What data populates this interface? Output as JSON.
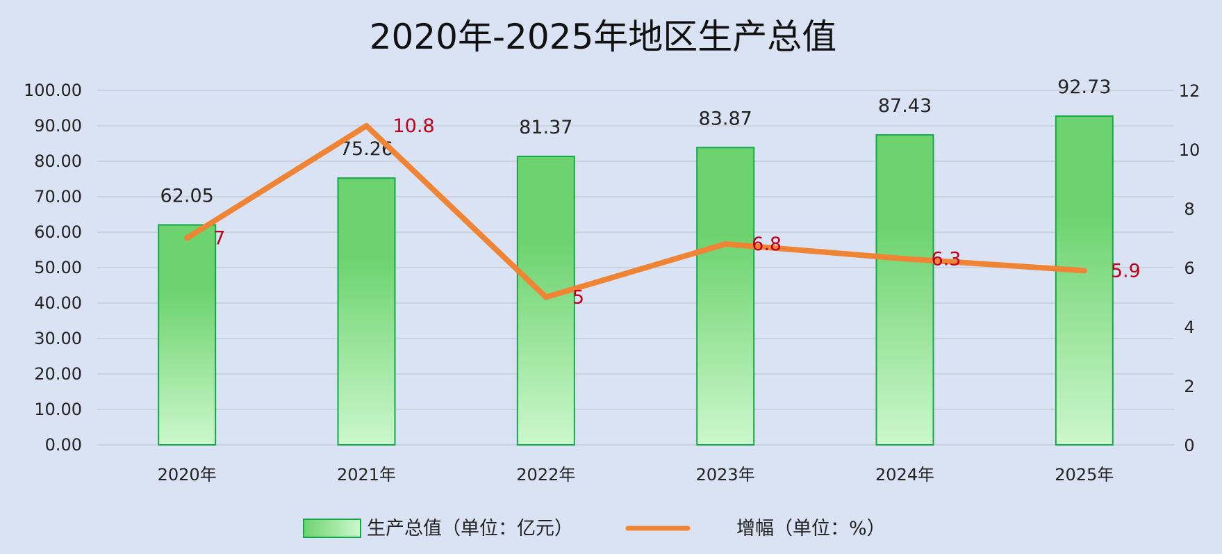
{
  "chart_data": {
    "type": "bar",
    "title": "2020年-2025年地区生产总值",
    "categories": [
      "2020年",
      "2021年",
      "2022年",
      "2023年",
      "2024年",
      "2025年"
    ],
    "series": [
      {
        "name": "生产总值（单位：亿元）",
        "type": "bar",
        "axis": "left",
        "values": [
          62.05,
          75.26,
          81.37,
          83.87,
          87.43,
          92.73
        ],
        "labels": [
          "62.05",
          "75.26",
          "81.37",
          "83.87",
          "87.43",
          "92.73"
        ],
        "color": "#6dd36f"
      },
      {
        "name": "增幅（单位：%）",
        "type": "line",
        "axis": "right",
        "values": [
          7,
          10.8,
          5,
          6.8,
          6.3,
          5.9
        ],
        "labels": [
          "7",
          "10.8",
          "5",
          "6.8",
          "6.3",
          "5.9"
        ],
        "color": "#ef8434"
      }
    ],
    "y_left": {
      "min": 0,
      "max": 100,
      "ticks": [
        "0.00",
        "10.00",
        "20.00",
        "30.00",
        "40.00",
        "50.00",
        "60.00",
        "70.00",
        "80.00",
        "90.00",
        "100.00"
      ]
    },
    "y_right": {
      "min": 0,
      "max": 12,
      "ticks": [
        "0",
        "2",
        "4",
        "6",
        "8",
        "10",
        "12"
      ]
    },
    "grid": true,
    "legend_position": "bottom",
    "colors": {
      "background": "#dae3f3",
      "bar_fill_top": "#6dd36f",
      "bar_fill_bottom": "#ccf7cc",
      "bar_border": "#12a84a",
      "line": "#ef8434",
      "line_label": "#c0001a",
      "grid": "#c7ccd3"
    }
  }
}
